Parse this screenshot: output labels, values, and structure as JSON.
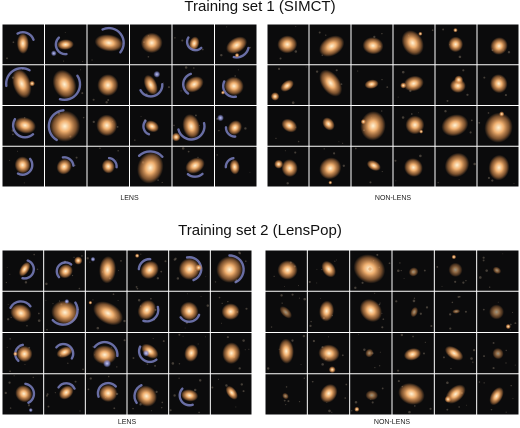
{
  "figure": {
    "sets": [
      {
        "title": "Training set 1 (SIMCT)",
        "panels": [
          {
            "label": "LENS",
            "kind": "lens_sim"
          },
          {
            "label": "NON-LENS",
            "kind": "nonlens_sim"
          }
        ]
      },
      {
        "title": "Training set 2 (LensPop)",
        "panels": [
          {
            "label": "LENS",
            "kind": "lens_pop"
          },
          {
            "label": "NON-LENS",
            "kind": "nonlens_pop"
          }
        ]
      }
    ],
    "grid": {
      "rows": 4,
      "cols": 6
    },
    "colors": {
      "background": "#ffffff",
      "cutout_background": "#0b0b0c",
      "galaxy_core": "#fff3d6",
      "galaxy_halo": "#d68a4a",
      "lens_arc": "#8a90d8"
    }
  }
}
